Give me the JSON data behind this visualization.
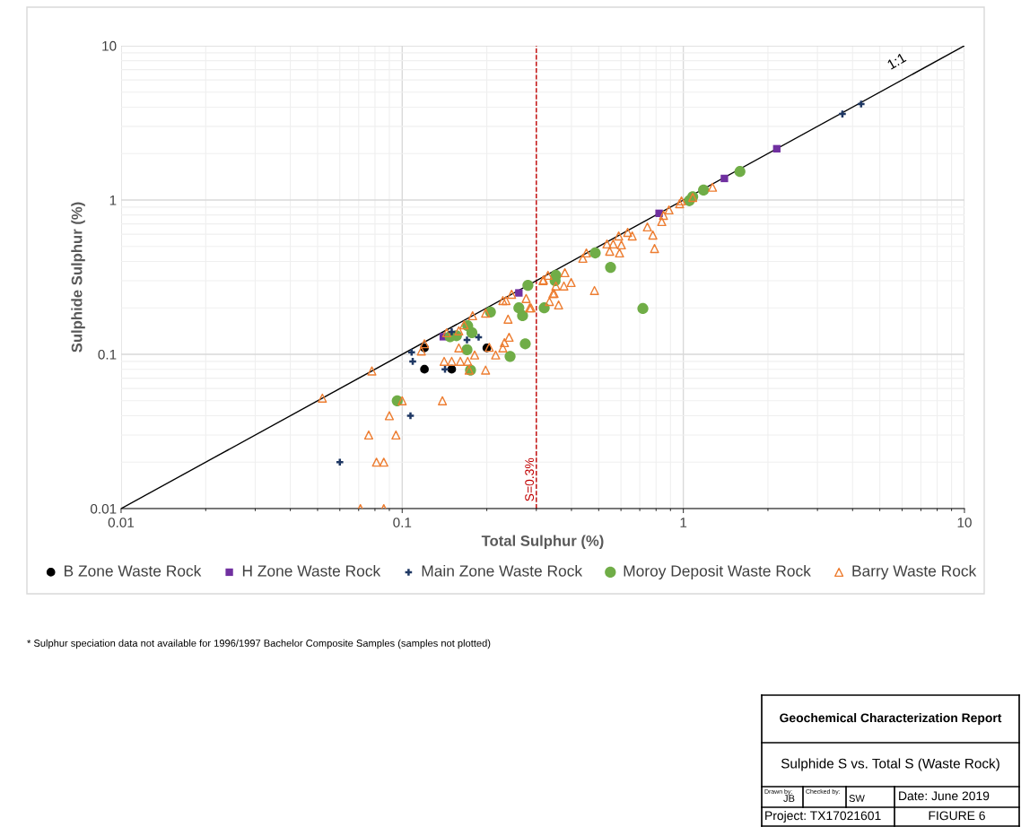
{
  "chart_data": {
    "type": "scatter",
    "xlabel": "Total Sulphur (%)",
    "ylabel": "Sulphide Sulphur (%)",
    "log": "xy",
    "grid": true,
    "legend": "bottom",
    "xlim": [
      0.01,
      10
    ],
    "ylim": [
      0.01,
      10
    ],
    "xticks": [
      {
        "value": 0.01,
        "label": "0.01"
      },
      {
        "value": 0.1,
        "label": "0.1"
      },
      {
        "value": 1,
        "label": "1"
      },
      {
        "value": 10,
        "label": "10"
      }
    ],
    "yticks": [
      {
        "value": 0.01,
        "label": "0.01"
      },
      {
        "value": 0.1,
        "label": "0.1"
      },
      {
        "value": 1,
        "label": "1"
      },
      {
        "value": 10,
        "label": "10"
      }
    ],
    "ref_lines": [
      {
        "axis": "x",
        "value": 0.3,
        "label": "S=0.3%",
        "color": "#c00000",
        "line_style": "dashed"
      }
    ],
    "series": [
      {
        "type": "line",
        "color": "#000000",
        "marker": "none",
        "x": [
          0.01,
          10
        ],
        "values": [
          0.01,
          10
        ]
      },
      {
        "name": "B Zone Waste Rock",
        "color": "#000000",
        "marker": "circle",
        "x": [
          0.12,
          0.12,
          0.15,
          0.2
        ],
        "values": [
          0.11,
          0.08,
          0.08,
          0.11
        ]
      },
      {
        "name": "H Zone Waste Rock",
        "color": "#7030a0",
        "marker": "square",
        "x": [
          0.14,
          0.26,
          0.82,
          1.4,
          2.15
        ],
        "values": [
          0.13,
          0.25,
          0.82,
          1.38,
          2.15
        ]
      },
      {
        "name": "Main Zone Waste Rock",
        "color": "#1f3864",
        "marker": "cross",
        "x": [
          0.06,
          0.108,
          0.109,
          0.107,
          0.142,
          0.15,
          0.17,
          0.187,
          3.68,
          4.29
        ],
        "values": [
          0.02,
          0.103,
          0.09,
          0.04,
          0.08,
          0.14,
          0.124,
          0.129,
          3.61,
          4.19
        ]
      },
      {
        "name": "Moroy Deposit Waste Rock",
        "color": "#70ad47",
        "marker": "circle",
        "x": [
          0.096,
          0.148,
          0.156,
          0.171,
          0.177,
          0.17,
          0.175,
          0.242,
          0.274,
          0.206,
          0.268,
          0.26,
          0.28,
          0.32,
          0.352,
          0.35,
          0.486,
          0.551,
          0.718,
          1.05,
          1.08,
          1.18,
          1.59
        ],
        "values": [
          0.05,
          0.13,
          0.132,
          0.153,
          0.138,
          0.107,
          0.079,
          0.097,
          0.117,
          0.188,
          0.178,
          0.2,
          0.28,
          0.2,
          0.325,
          0.3,
          0.454,
          0.366,
          0.198,
          0.99,
          1.05,
          1.16,
          1.53
        ]
      },
      {
        "name": "Barry Waste Rock",
        "color": "#ed7d31",
        "marker": "triangle",
        "x": [
          0.052,
          0.078,
          0.09,
          0.076,
          0.095,
          0.081,
          0.086,
          0.071,
          0.086,
          0.1,
          0.139,
          0.12,
          0.117,
          0.141,
          0.15,
          0.161,
          0.171,
          0.198,
          0.173,
          0.159,
          0.181,
          0.204,
          0.228,
          0.215,
          0.231,
          0.24,
          0.159,
          0.166,
          0.178,
          0.198,
          0.238,
          0.144,
          0.228,
          0.234,
          0.245,
          0.276,
          0.284,
          0.317,
          0.33,
          0.347,
          0.334,
          0.287,
          0.36,
          0.344,
          0.352,
          0.376,
          0.399,
          0.379,
          0.318,
          0.483,
          0.439,
          0.452,
          0.535,
          0.547,
          0.563,
          0.593,
          0.602,
          0.589,
          0.634,
          0.658,
          0.745,
          0.779,
          0.79,
          0.838,
          0.85,
          0.889,
          0.97,
          0.985,
          1.08,
          1.27
        ],
        "values": [
          0.052,
          0.078,
          0.04,
          0.03,
          0.03,
          0.02,
          0.02,
          0.01,
          0.01,
          0.05,
          0.05,
          0.117,
          0.105,
          0.09,
          0.09,
          0.09,
          0.09,
          0.079,
          0.079,
          0.11,
          0.099,
          0.111,
          0.11,
          0.099,
          0.119,
          0.129,
          0.142,
          0.155,
          0.178,
          0.185,
          0.169,
          0.138,
          0.223,
          0.223,
          0.245,
          0.23,
          0.2,
          0.3,
          0.325,
          0.248,
          0.22,
          0.2,
          0.209,
          0.248,
          0.277,
          0.277,
          0.292,
          0.338,
          0.304,
          0.259,
          0.419,
          0.454,
          0.519,
          0.466,
          0.519,
          0.454,
          0.512,
          0.585,
          0.617,
          0.585,
          0.669,
          0.593,
          0.485,
          0.725,
          0.796,
          0.863,
          0.947,
          0.987,
          1.04,
          1.21
        ]
      }
    ],
    "annotations": [
      {
        "text": "1:1",
        "x": 6,
        "y": 6
      },
      "* Sulphur speciation data not available for 1996/1997 Bachelor Composite Samples (samples not plotted)",
      "Geochemical Characterization Report",
      "Sulphide S vs. Total S (Waste Rock)",
      "Drawn by:",
      "JB",
      "Checked by:",
      "SW",
      "Date: June 2019",
      "Project: TX17021601",
      "FIGURE 6"
    ]
  }
}
